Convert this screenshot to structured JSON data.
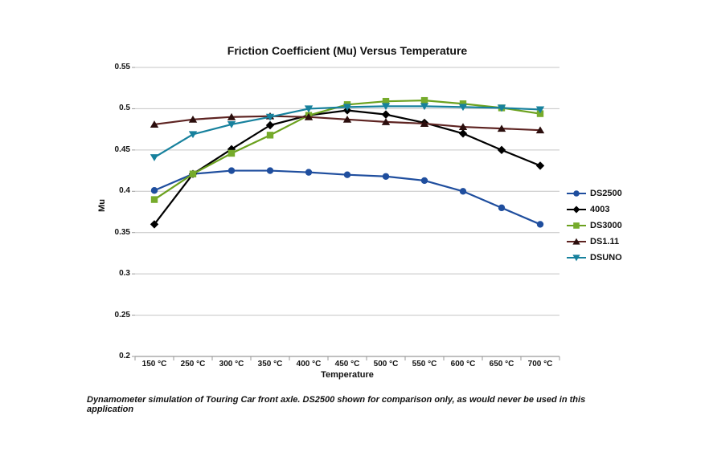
{
  "chart_data": {
    "type": "line",
    "title": "Friction Coefficient (Mu) Versus Temperature",
    "xlabel": "Temperature",
    "ylabel": "Mu",
    "categories": [
      "150 °C",
      "250 °C",
      "300 °C",
      "350 °C",
      "400 °C",
      "450 °C",
      "500 °C",
      "550 °C",
      "600 °C",
      "650 °C",
      "700 °C"
    ],
    "ylim": [
      0.2,
      0.55
    ],
    "y_ticks": [
      0.55,
      0.5,
      0.45,
      0.4,
      0.35,
      0.3,
      0.25,
      0.2
    ],
    "grid": "horizontal",
    "legend_position": "right",
    "series": [
      {
        "name": "DS2500",
        "color": "#1F4E9E",
        "marker": "circle",
        "values": [
          0.401,
          0.421,
          0.425,
          0.425,
          0.423,
          0.42,
          0.418,
          0.413,
          0.4,
          0.38,
          0.36
        ]
      },
      {
        "name": "4003",
        "color": "#000000",
        "marker": "diamond",
        "values": [
          0.36,
          0.421,
          0.451,
          0.48,
          0.492,
          0.498,
          0.493,
          0.483,
          0.47,
          0.45,
          0.431
        ]
      },
      {
        "name": "DS3000",
        "color": "#6BA11E",
        "marker": "square",
        "marker_color": "#76AB2B",
        "values": [
          0.39,
          0.421,
          0.446,
          0.468,
          0.492,
          0.505,
          0.509,
          0.51,
          0.506,
          0.501,
          0.494
        ]
      },
      {
        "name": "DS1.11",
        "color": "#5E2422",
        "marker": "triangle-up",
        "marker_color": "#2B0E0D",
        "values": [
          0.481,
          0.487,
          0.49,
          0.491,
          0.49,
          0.487,
          0.484,
          0.482,
          0.478,
          0.476,
          0.474
        ]
      },
      {
        "name": "DSUNO",
        "color": "#17819D",
        "marker": "triangle-down",
        "values": [
          0.441,
          0.469,
          0.481,
          0.49,
          0.5,
          0.502,
          0.503,
          0.503,
          0.502,
          0.501,
          0.499
        ]
      }
    ],
    "caption": "Dynamometer simulation of Touring Car front axle. DS2500 shown for comparison only, as would never be used in this application",
    "colors": {
      "gridline": "#C4C4C4",
      "axis": "#9A9A9A",
      "background": "#FFFFFF",
      "text": "#111111"
    }
  }
}
